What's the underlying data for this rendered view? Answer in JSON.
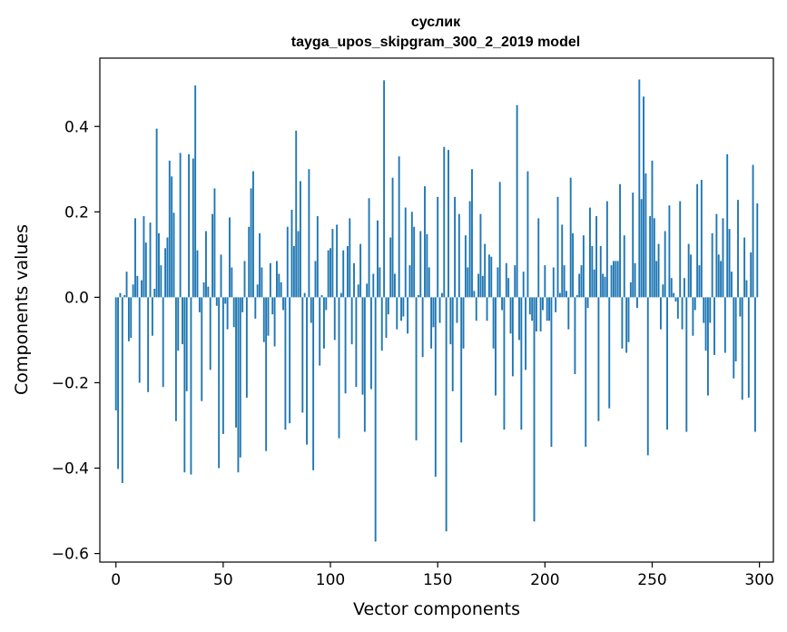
{
  "chart_data": {
    "type": "bar",
    "title": "суслик",
    "subtitle": "tayga_upos_skipgram_300_2_2019 model",
    "xlabel": "Vector components",
    "ylabel": "Components values",
    "xlim": [
      -7.5,
      306.5
    ],
    "ylim": [
      -0.62,
      0.56
    ],
    "xticks": [
      0,
      50,
      100,
      150,
      200,
      250,
      300
    ],
    "yticks": [
      -0.6,
      -0.4,
      -0.2,
      0.0,
      0.2,
      0.4
    ],
    "ytick_labels": [
      "−0.6",
      "−0.4",
      "−0.2",
      "0.0",
      "0.2",
      "0.4"
    ],
    "grid": false,
    "bar_color": "#1f77b4",
    "values": [
      -0.265,
      -0.402,
      0.01,
      -0.435,
      0.005,
      0.06,
      -0.103,
      -0.095,
      0.03,
      0.185,
      0.05,
      -0.2,
      0.04,
      0.19,
      0.128,
      -0.222,
      0.175,
      -0.09,
      0.02,
      0.395,
      0.15,
      0.075,
      -0.21,
      0.115,
      0.14,
      0.32,
      0.283,
      0.198,
      -0.29,
      -0.125,
      0.338,
      -0.11,
      -0.41,
      -0.22,
      0.335,
      -0.415,
      0.325,
      0.496,
      0.11,
      -0.035,
      -0.243,
      0.035,
      0.155,
      0.025,
      -0.17,
      0.195,
      0.255,
      -0.02,
      -0.4,
      0.1,
      -0.32,
      -0.015,
      -0.075,
      0.187,
      0.07,
      -0.07,
      -0.305,
      -0.41,
      -0.375,
      -0.035,
      0.085,
      -0.235,
      0.165,
      0.255,
      0.295,
      -0.05,
      0.03,
      0.15,
      0.07,
      -0.105,
      -0.36,
      -0.09,
      0.08,
      -0.04,
      -0.115,
      0.085,
      0.055,
      0.035,
      -0.03,
      -0.31,
      0.165,
      -0.295,
      0.205,
      0.12,
      0.39,
      0.155,
      0.272,
      -0.27,
      0.01,
      -0.345,
      0.3,
      -0.06,
      -0.405,
      0.085,
      0.19,
      -0.16,
      0.005,
      -0.12,
      -0.03,
      0.11,
      0.115,
      0.16,
      -0.1,
      0.17,
      -0.33,
      0.01,
      0.11,
      -0.225,
      0.12,
      0.185,
      -0.11,
      0.08,
      -0.21,
      0.03,
      0.125,
      -0.228,
      -0.315,
      0.032,
      0.232,
      -0.215,
      0.055,
      -0.572,
      0.18,
      0.07,
      -0.125,
      0.508,
      -0.095,
      -0.04,
      0.14,
      0.28,
      0.055,
      -0.075,
      0.33,
      -0.055,
      -0.045,
      0.21,
      -0.085,
      0.075,
      0.2,
      0.165,
      -0.335,
      0.005,
      0.155,
      -0.14,
      0.26,
      0.148,
      0.07,
      -0.12,
      -0.07,
      -0.42,
      0.235,
      -0.06,
      0.01,
      0.352,
      -0.548,
      0.345,
      -0.11,
      -0.22,
      0.235,
      -0.06,
      0.195,
      -0.34,
      -0.12,
      0.145,
      0.07,
      0.225,
      0.3,
      0.015,
      -0.055,
      0.055,
      0.195,
      0.05,
      0.125,
      -0.055,
      0.1,
      0.095,
      -0.12,
      -0.23,
      0.07,
      0.27,
      -0.03,
      -0.31,
      0.08,
      0.045,
      -0.085,
      -0.185,
      0.075,
      0.45,
      -0.1,
      -0.31,
      0.06,
      -0.17,
      0.295,
      -0.04,
      -0.055,
      -0.525,
      -0.08,
      0.185,
      -0.08,
      -0.03,
      0.075,
      -0.055,
      -0.055,
      -0.35,
      0.07,
      -0.035,
      0.235,
      0.01,
      0.17,
      0.075,
      0.015,
      -0.075,
      0.28,
      0.15,
      -0.18,
      0.005,
      0.055,
      0.075,
      0.145,
      -0.35,
      -0.025,
      0.21,
      0.12,
      0.065,
      0.19,
      -0.29,
      0.12,
      0.055,
      0.048,
      0.225,
      -0.26,
      0.075,
      0.085,
      0.085,
      0.085,
      0.265,
      -0.12,
      0.145,
      -0.13,
      -0.105,
      0.035,
      0.245,
      0.08,
      -0.025,
      0.51,
      0.23,
      0.47,
      0.29,
      -0.37,
      0.19,
      0.32,
      0.185,
      0.085,
      0.125,
      -0.075,
      0.03,
      0.155,
      -0.31,
      0.215,
      0.045,
      0.01,
      -0.01,
      -0.05,
      0.225,
      -0.075,
      0.045,
      -0.315,
      0.125,
      0.1,
      -0.09,
      -0.03,
      0.265,
      0.075,
      0.275,
      -0.06,
      -0.125,
      -0.23,
      -0.06,
      0.15,
      -0.135,
      0.195,
      0.1,
      0.085,
      0.185,
      -0.13,
      0.335,
      0.16,
      0.06,
      -0.19,
      -0.15,
      0.228,
      -0.045,
      -0.24,
      0.14,
      0.04,
      -0.235,
      0.105,
      0.31,
      -0.315,
      0.22
    ]
  }
}
